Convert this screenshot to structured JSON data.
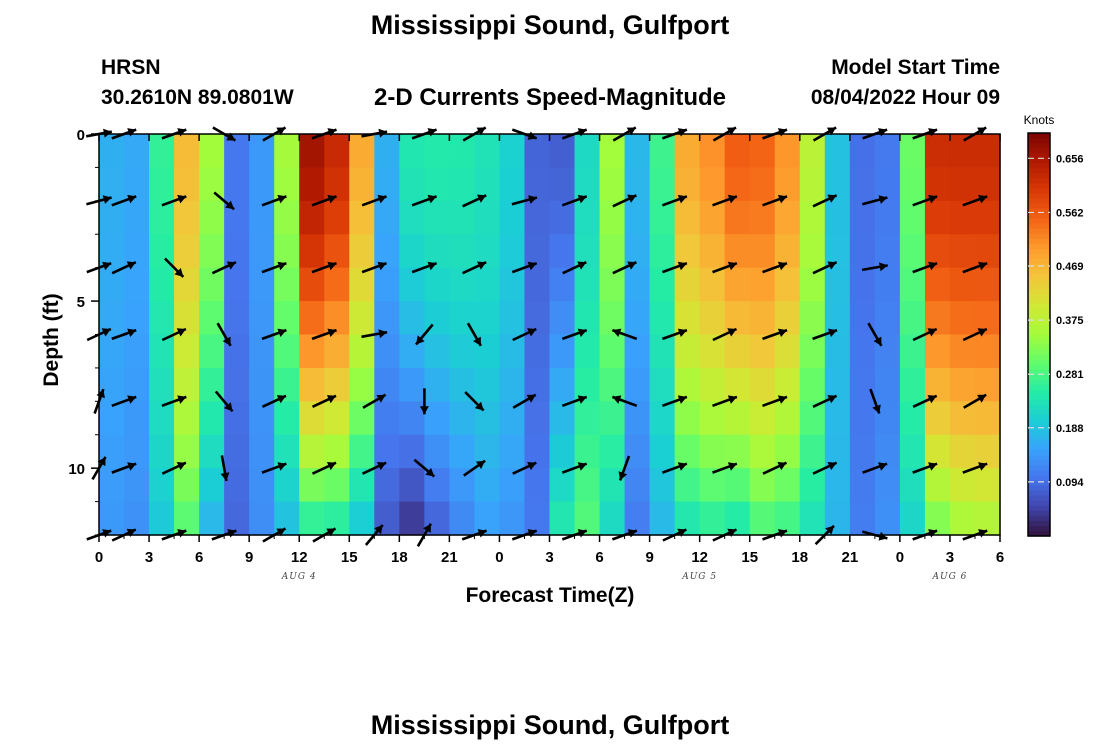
{
  "chart_data": {
    "type": "heatmap",
    "title": "Mississippi Sound, Gulfport",
    "subtitle": "2-D Currents Speed-Magnitude",
    "station": "HRSN",
    "location": "30.2610N  89.0801W",
    "model_start_label": "Model Start Time",
    "model_start_value": "08/04/2022 Hour 09",
    "xlabel": "Forecast Time(Z)",
    "ylabel": "Depth (ft)",
    "xlim": [
      0,
      54
    ],
    "ylim": [
      0,
      12
    ],
    "x_ticks": [
      0,
      3,
      6,
      9,
      12,
      15,
      18,
      21,
      24,
      27,
      30,
      33,
      36,
      39,
      42,
      45,
      48,
      51,
      54
    ],
    "x_tick_labels": [
      "0",
      "3",
      "6",
      "9",
      "12",
      "15",
      "18",
      "21",
      "0",
      "3",
      "6",
      "9",
      "12",
      "15",
      "18",
      "21",
      "0",
      "3",
      "6"
    ],
    "y_ticks": [
      0,
      5,
      10
    ],
    "y_tick_labels": [
      "0",
      "5",
      "10"
    ],
    "date_labels": [
      {
        "text": "AUG 4",
        "x": 12
      },
      {
        "text": "AUG 5",
        "x": 36
      },
      {
        "text": "AUG 6",
        "x": 51
      }
    ],
    "colorbar": {
      "label": "Knots",
      "min": 0.0,
      "max": 0.7,
      "ticks": [
        0.094,
        0.188,
        0.281,
        0.375,
        0.469,
        0.562,
        0.656
      ],
      "tick_labels": [
        "0.094",
        "0.188",
        "0.281",
        "0.375",
        "0.469",
        "0.562",
        "0.656"
      ]
    },
    "depths": [
      0,
      1,
      2,
      3,
      4,
      5,
      6,
      7,
      8,
      9,
      10,
      11,
      12
    ],
    "speed_profile_hours": [
      0,
      2,
      4,
      5.5,
      6.5,
      8,
      9.5,
      11,
      12,
      13.5,
      15.5,
      17,
      18.5,
      21,
      23.5,
      25,
      26.5,
      28,
      30,
      31.5,
      32.5,
      33.5,
      35,
      36.5,
      38,
      40,
      42,
      44,
      46,
      48,
      50,
      52,
      54
    ],
    "speed_surface": [
      0.18,
      0.14,
      0.28,
      0.5,
      0.4,
      0.1,
      0.12,
      0.25,
      0.66,
      0.67,
      0.55,
      0.15,
      0.24,
      0.25,
      0.23,
      0.2,
      0.06,
      0.08,
      0.3,
      0.4,
      0.1,
      0.23,
      0.48,
      0.5,
      0.56,
      0.55,
      0.48,
      0.2,
      0.08,
      0.12,
      0.62,
      0.62,
      0.62
    ],
    "speed_bottom": [
      0.15,
      0.12,
      0.2,
      0.3,
      0.18,
      0.08,
      0.12,
      0.16,
      0.22,
      0.25,
      0.2,
      0.08,
      0.02,
      0.1,
      0.15,
      0.13,
      0.1,
      0.28,
      0.3,
      0.12,
      0.1,
      0.16,
      0.22,
      0.25,
      0.22,
      0.28,
      0.25,
      0.18,
      0.1,
      0.15,
      0.3,
      0.35,
      0.35
    ],
    "vector_hours": [
      0,
      1.5,
      4.5,
      7.5,
      10.5,
      13.5,
      16.5,
      19.5,
      22.5,
      25.5,
      28.5,
      31.5,
      34.5,
      37.5,
      40.5,
      43.5,
      46.5,
      49.5,
      52.5
    ],
    "vector_depths": [
      0,
      2,
      4,
      6,
      8,
      10,
      12
    ],
    "vector_directions_deg": [
      [
        10,
        20,
        20,
        -30,
        30,
        20,
        10,
        20,
        30,
        -20,
        20,
        30,
        20,
        30,
        20,
        30,
        20,
        20,
        30
      ],
      [
        15,
        20,
        20,
        -40,
        20,
        20,
        20,
        20,
        25,
        15,
        20,
        25,
        20,
        20,
        20,
        25,
        15,
        20,
        20
      ],
      [
        20,
        25,
        -45,
        25,
        20,
        20,
        20,
        20,
        25,
        20,
        25,
        25,
        20,
        20,
        20,
        25,
        10,
        20,
        20
      ],
      [
        25,
        20,
        25,
        -60,
        20,
        20,
        10,
        -130,
        -60,
        25,
        20,
        160,
        20,
        25,
        20,
        20,
        -60,
        25,
        25
      ],
      [
        70,
        20,
        20,
        -50,
        25,
        25,
        30,
        -90,
        -45,
        30,
        20,
        160,
        20,
        20,
        20,
        25,
        -70,
        25,
        30
      ],
      [
        60,
        20,
        25,
        -80,
        20,
        25,
        25,
        -40,
        35,
        25,
        20,
        -110,
        20,
        20,
        25,
        25,
        20,
        20,
        20
      ],
      [
        20,
        25,
        20,
        20,
        30,
        30,
        50,
        60,
        20,
        20,
        20,
        20,
        25,
        25,
        20,
        45,
        -15,
        20,
        20
      ]
    ],
    "colormap": [
      "#30123b",
      "#4145ab",
      "#4675ed",
      "#39a2fc",
      "#1bcfd4",
      "#24eca6",
      "#61fc6c",
      "#a4fc3b",
      "#d1e834",
      "#f3c63a",
      "#fe9b2d",
      "#f36315",
      "#d93806",
      "#b11901",
      "#7a0402"
    ]
  }
}
